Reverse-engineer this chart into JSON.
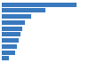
{
  "values": [
    1800,
    1050,
    700,
    560,
    490,
    440,
    400,
    360,
    310,
    180
  ],
  "bar_color": "#3979be",
  "background_color": "#ffffff",
  "grid_color": "#d9d9d9",
  "xlim": [
    0,
    2050
  ]
}
